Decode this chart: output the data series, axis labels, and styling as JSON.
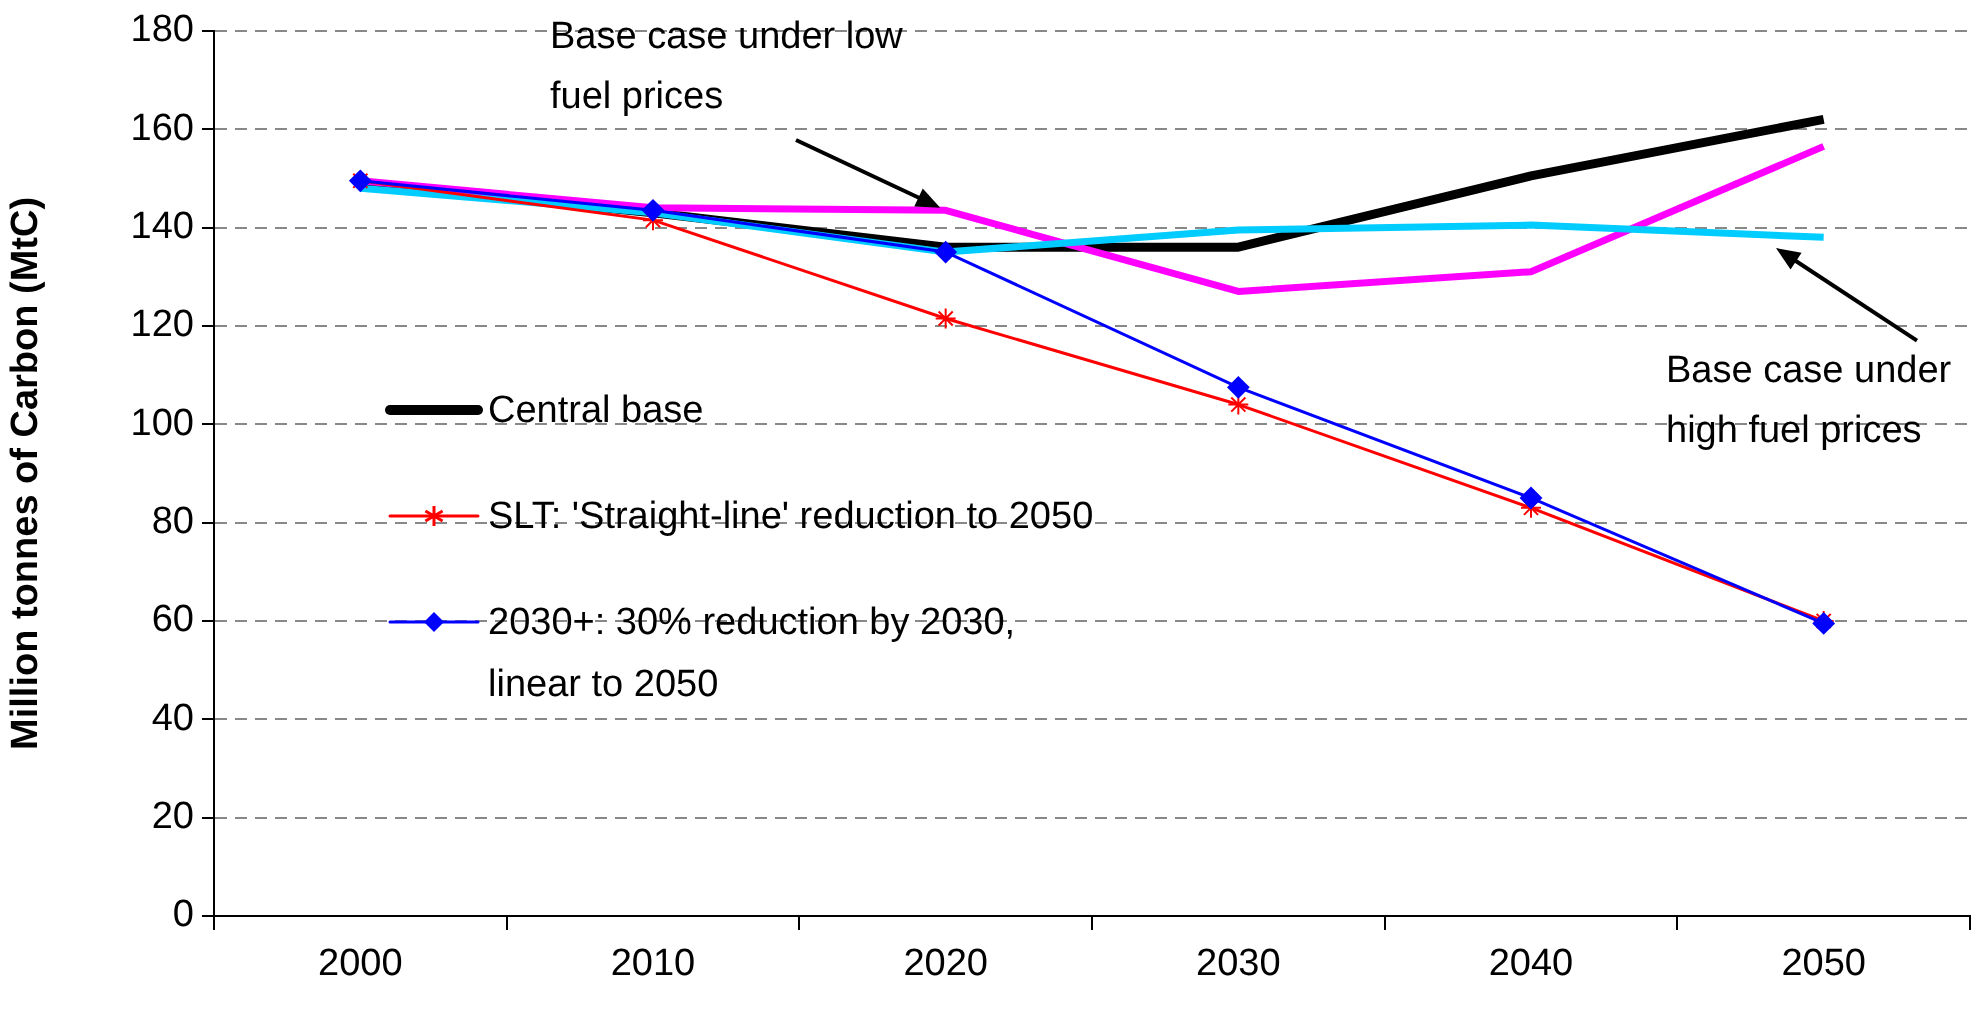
{
  "chart_data": {
    "type": "line",
    "ylabel": "Million tonnes of Carbon (MtC)",
    "categories": [
      "2000",
      "2010",
      "2020",
      "2030",
      "2040",
      "2050"
    ],
    "ylim": [
      0,
      180
    ],
    "yticks": [
      0,
      20,
      40,
      60,
      80,
      100,
      120,
      140,
      160,
      180
    ],
    "grid": "y",
    "legend": "left",
    "series": [
      {
        "name": "Central base",
        "color": "#000000",
        "marker": "none",
        "values": [
          149,
          143,
          136,
          136,
          150.5,
          162
        ]
      },
      {
        "color": "#ff00ff",
        "marker": "none",
        "values": [
          149.5,
          144,
          143.5,
          127,
          131,
          156.5
        ]
      },
      {
        "color": "#00ccff",
        "marker": "none",
        "values": [
          148,
          143,
          135,
          139.5,
          140.5,
          138
        ]
      },
      {
        "name": "SLT: 'Straight-line' reduction to 2050",
        "color": "#ff0000",
        "marker": "cross",
        "values": [
          149.5,
          141.5,
          121.5,
          104,
          83,
          60
        ]
      },
      {
        "name": "2030+: 30% reduction by 2030, linear to 2050",
        "color": "#0000ff",
        "marker": "diamond",
        "values": [
          149.5,
          143.5,
          135,
          107.5,
          85,
          59.5
        ]
      }
    ],
    "annotations": [
      {
        "text": "Base case under low fuel prices",
        "x": "2020",
        "y": 143.5
      },
      "Base case under high fuel prices"
    ]
  }
}
